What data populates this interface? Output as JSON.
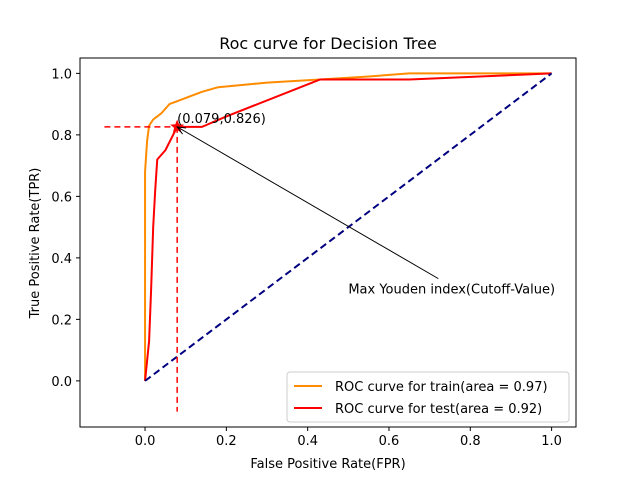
{
  "chart_data": {
    "type": "line",
    "title": "Roc curve for Decision Tree",
    "xlabel": "False Positive Rate(FPR)",
    "ylabel": "True Positive Rate(TPR)",
    "xlim": [
      -0.16,
      1.06
    ],
    "ylim": [
      -0.15,
      1.05
    ],
    "x_ticks": [
      0.0,
      0.2,
      0.4,
      0.6,
      0.8,
      1.0
    ],
    "x_tick_labels": [
      "0.0",
      "0.2",
      "0.4",
      "0.6",
      "0.8",
      "1.0"
    ],
    "y_ticks": [
      0.0,
      0.2,
      0.4,
      0.6,
      0.8,
      1.0
    ],
    "y_tick_labels": [
      "0.0",
      "0.2",
      "0.4",
      "0.6",
      "0.8",
      "1.0"
    ],
    "grid": false,
    "legend_position": "lower-right",
    "series": [
      {
        "name": "ROC curve for train(area = 0.97)",
        "color": "#ff8c00",
        "x": [
          0.0,
          0.0,
          0.005,
          0.01,
          0.02,
          0.04,
          0.06,
          0.08,
          0.11,
          0.14,
          0.18,
          0.3,
          0.43,
          0.55,
          0.65,
          0.75,
          0.85,
          1.0
        ],
        "y": [
          0.0,
          0.68,
          0.78,
          0.83,
          0.85,
          0.87,
          0.9,
          0.91,
          0.925,
          0.94,
          0.955,
          0.97,
          0.98,
          0.99,
          1.0,
          1.0,
          1.0,
          1.0
        ]
      },
      {
        "name": "ROC curve for test(area = 0.92)",
        "color": "#ff0000",
        "x": [
          0.0,
          0.01,
          0.015,
          0.02,
          0.025,
          0.03,
          0.05,
          0.079,
          0.14,
          0.2,
          0.43,
          0.65,
          1.0
        ],
        "y": [
          0.0,
          0.13,
          0.3,
          0.5,
          0.62,
          0.72,
          0.75,
          0.826,
          0.826,
          0.86,
          0.98,
          0.98,
          1.0
        ]
      },
      {
        "color": "#000080",
        "style": "dashed",
        "x": [
          0.0,
          1.0
        ],
        "y": [
          0.0,
          1.0
        ]
      }
    ],
    "cutoff_point": {
      "x": 0.079,
      "y": 0.826,
      "label": "(0.079,0.826)",
      "color": "#ff0000",
      "marker": "star",
      "guide_lines": {
        "horizontal_from_x": -0.1,
        "vertical_to_y": -0.1,
        "style": "dashed"
      }
    },
    "annotations": [
      {
        "text": "Max Youden index(Cutoff-Value)",
        "x": 0.5,
        "y": 0.3,
        "arrow_to": [
          0.079,
          0.826
        ]
      }
    ]
  }
}
